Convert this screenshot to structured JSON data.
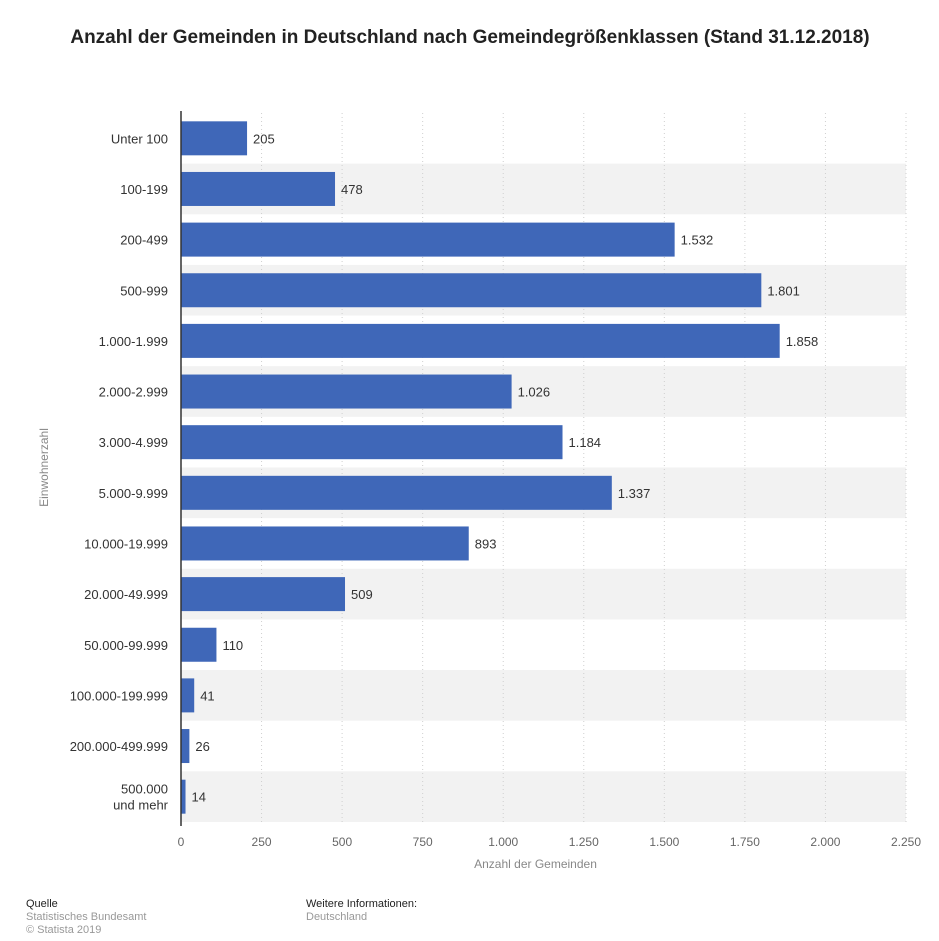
{
  "chart_data": {
    "type": "bar",
    "orientation": "horizontal",
    "title": "Anzahl der Gemeinden in Deutschland nach Gemeindegrößenklassen (Stand 31.12.2018)",
    "xlabel": "Anzahl der Gemeinden",
    "ylabel": "Einwohnerzahl",
    "xlim": [
      0,
      2250
    ],
    "xticks": [
      0,
      250,
      500,
      750,
      1000,
      1250,
      1500,
      1750,
      2000,
      2250
    ],
    "xtick_labels": [
      "0",
      "250",
      "500",
      "750",
      "1.000",
      "1.250",
      "1.500",
      "1.750",
      "2.000",
      "2.250"
    ],
    "categories": [
      [
        "Unter 100"
      ],
      [
        "100-199"
      ],
      [
        "200-499"
      ],
      [
        "500-999"
      ],
      [
        "1.000-1.999"
      ],
      [
        "2.000-2.999"
      ],
      [
        "3.000-4.999"
      ],
      [
        "5.000-9.999"
      ],
      [
        "10.000-19.999"
      ],
      [
        "20.000-49.999"
      ],
      [
        "50.000-99.999"
      ],
      [
        "100.000-199.999"
      ],
      [
        "200.000-499.999"
      ],
      [
        "500.000",
        "und mehr"
      ]
    ],
    "values": [
      205,
      478,
      1532,
      1801,
      1858,
      1026,
      1184,
      1337,
      893,
      509,
      110,
      41,
      26,
      14
    ],
    "value_labels": [
      "205",
      "478",
      "1.532",
      "1.801",
      "1.858",
      "1.026",
      "1.184",
      "1.337",
      "893",
      "509",
      "110",
      "41",
      "26",
      "14"
    ],
    "bar_color": "#3f67b8",
    "grid": "vertical-dotted",
    "band_color": "#f2f2f2"
  },
  "footer": {
    "source_heading": "Quelle",
    "source_lines": [
      "Statistisches Bundesamt",
      "© Statista 2019"
    ],
    "info_heading": "Weitere Informationen:",
    "info_lines": [
      "Deutschland"
    ]
  }
}
